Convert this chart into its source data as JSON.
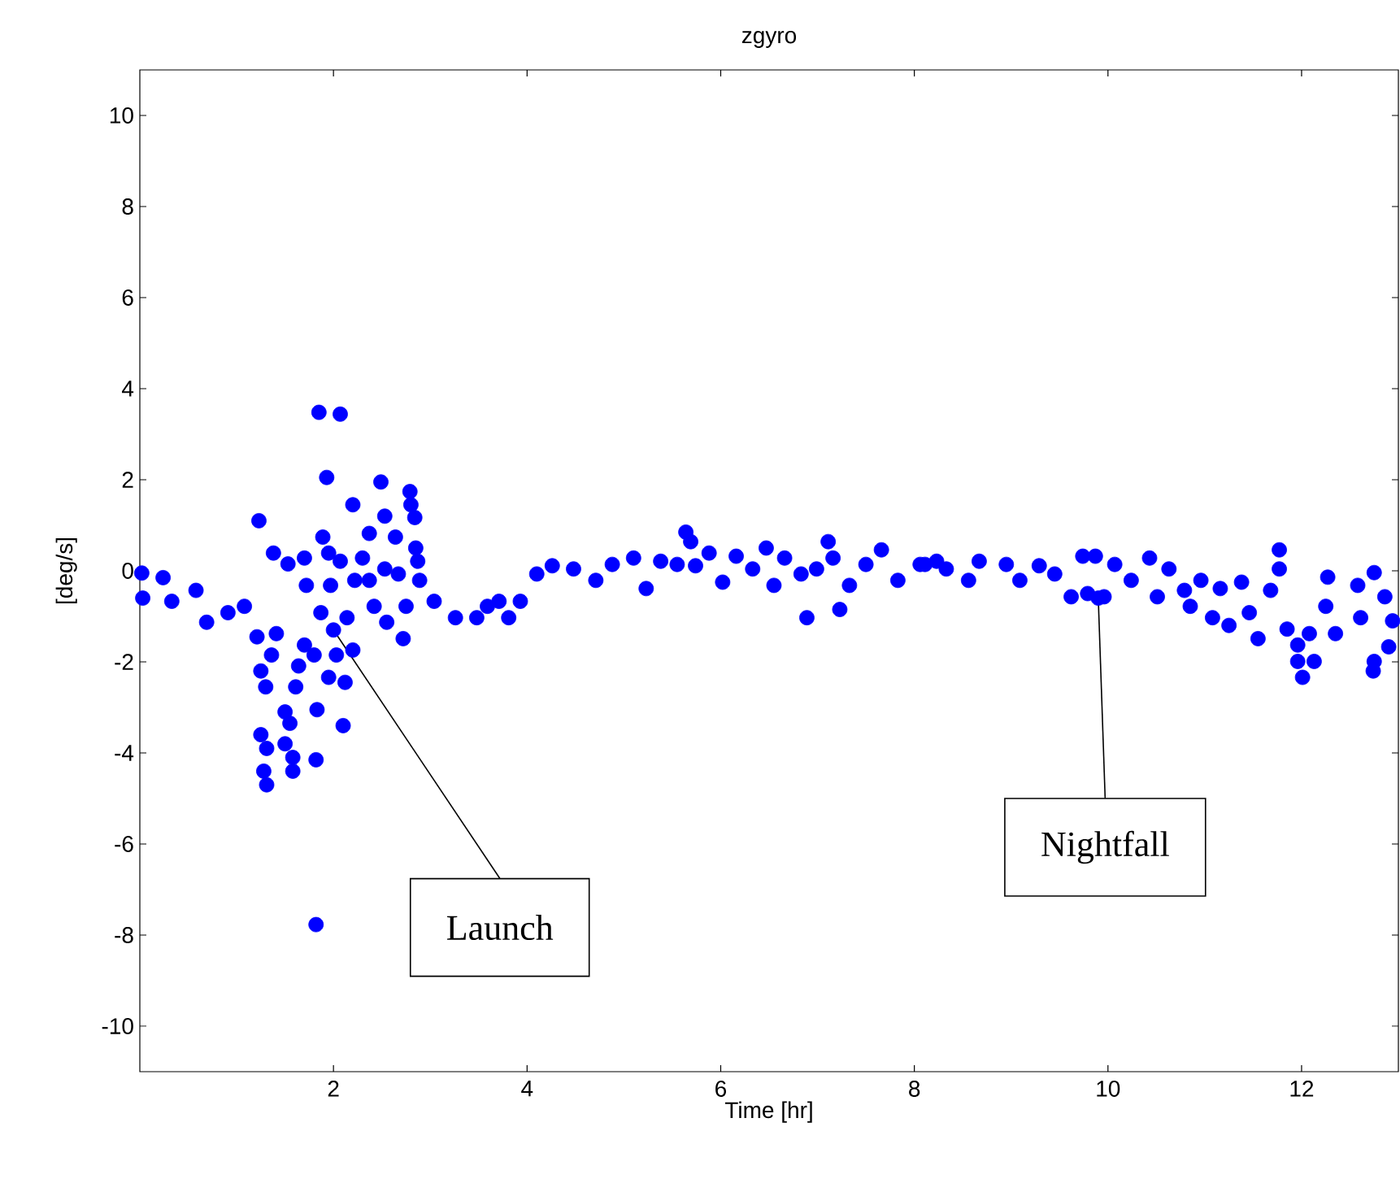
{
  "chart_data": {
    "type": "scatter",
    "title": "zgyro",
    "xlabel": "Time [hr]",
    "ylabel": "[deg/s]",
    "xlim": [
      0,
      13
    ],
    "ylim": [
      -11,
      11
    ],
    "xticks": [
      2,
      4,
      6,
      8,
      10,
      12
    ],
    "yticks": [
      -10,
      -8,
      -6,
      -4,
      -2,
      0,
      2,
      4,
      6,
      8,
      10
    ],
    "marker": "circle",
    "annotations": [
      {
        "text": "Launch",
        "x": 2,
        "y": -1.3
      },
      {
        "text": "Nightfall",
        "x": 9.9,
        "y": -0.6
      }
    ],
    "series": [
      {
        "color": "#0000ff",
        "x": [
          0.02,
          0.03,
          0.24,
          0.33,
          0.58,
          0.69,
          0.91,
          1.08,
          1.21,
          1.23,
          1.25,
          1.25,
          1.28,
          1.3,
          1.31,
          1.31,
          1.36,
          1.38,
          1.41,
          1.5,
          1.5,
          1.53,
          1.55,
          1.58,
          1.58,
          1.61,
          1.64,
          1.7,
          1.7,
          1.72,
          1.8,
          1.82,
          1.82,
          1.83,
          1.85,
          1.87,
          1.89,
          1.93,
          1.95,
          1.95,
          1.97,
          2,
          2.03,
          2.07,
          2.07,
          2.1,
          2.12,
          2.14,
          2.2,
          2.2,
          2.22,
          2.3,
          2.37,
          2.37,
          2.42,
          2.49,
          2.53,
          2.53,
          2.55,
          2.64,
          2.67,
          2.72,
          2.75,
          2.79,
          2.8,
          2.84,
          2.85,
          2.87,
          2.89,
          3.04,
          3.26,
          3.48,
          3.59,
          3.71,
          3.81,
          3.93,
          4.1,
          4.26,
          4.48,
          4.71,
          4.88,
          5.1,
          5.23,
          5.38,
          5.55,
          5.64,
          5.69,
          5.74,
          5.88,
          6.02,
          6.16,
          6.33,
          6.47,
          6.55,
          6.66,
          6.83,
          6.89,
          6.99,
          7.11,
          7.16,
          7.23,
          7.33,
          7.5,
          7.66,
          7.83,
          8.06,
          8.11,
          8.23,
          8.33,
          8.56,
          8.67,
          8.95,
          9.09,
          9.29,
          9.45,
          9.62,
          9.74,
          9.79,
          9.87,
          9.9,
          9.96,
          10.07,
          10.24,
          10.43,
          10.51,
          10.63,
          10.79,
          10.85,
          10.96,
          11.08,
          11.16,
          11.25,
          11.38,
          11.46,
          11.55,
          11.68,
          11.77,
          11.77,
          11.85,
          11.96,
          11.96,
          12.01,
          12.08,
          12.13,
          12.25,
          12.27,
          12.35,
          12.58,
          12.61,
          12.74,
          12.75,
          12.75,
          12.86,
          12.9,
          12.94
        ],
        "values": [
          -0.05,
          -0.6,
          -0.15,
          -0.67,
          -0.43,
          -1.13,
          -0.92,
          -0.78,
          -1.45,
          1.1,
          -2.2,
          -3.6,
          -4.4,
          -2.55,
          -3.9,
          -4.7,
          -1.85,
          0.39,
          -1.38,
          -3.1,
          -3.8,
          0.15,
          -3.35,
          -4.1,
          -4.4,
          -2.55,
          -2.09,
          0.28,
          -1.63,
          -0.32,
          -1.85,
          -4.15,
          -7.77,
          -3.05,
          3.48,
          -0.92,
          0.74,
          2.05,
          0.39,
          -2.34,
          -0.32,
          -1.3,
          -1.85,
          3.44,
          0.21,
          -3.4,
          -2.45,
          -1.03,
          1.45,
          -1.74,
          -0.21,
          0.28,
          0.82,
          -0.21,
          -0.78,
          1.95,
          1.2,
          0.04,
          -1.13,
          0.74,
          -0.07,
          -1.49,
          -0.78,
          1.74,
          1.45,
          1.17,
          0.5,
          0.21,
          -0.21,
          -0.67,
          -1.03,
          -1.03,
          -0.78,
          -0.67,
          -1.03,
          -0.67,
          -0.07,
          0.11,
          0.04,
          -0.21,
          0.14,
          0.28,
          -0.39,
          0.21,
          0.14,
          0.85,
          0.64,
          0.11,
          0.39,
          -0.25,
          0.32,
          0.04,
          0.5,
          -0.32,
          0.28,
          -0.07,
          -1.03,
          0.04,
          0.64,
          0.28,
          -0.85,
          -0.32,
          0.14,
          0.46,
          -0.21,
          0.14,
          0.14,
          0.21,
          0.04,
          -0.21,
          0.21,
          0.14,
          -0.21,
          0.11,
          -0.07,
          -0.57,
          0.32,
          -0.5,
          0.32,
          -0.6,
          -0.57,
          0.14,
          -0.21,
          0.28,
          -0.57,
          0.04,
          -0.43,
          -0.78,
          -0.21,
          -1.03,
          -0.39,
          -1.2,
          -0.25,
          -0.92,
          -1.49,
          -0.43,
          0.46,
          0.04,
          -1.28,
          -1.63,
          -1.99,
          -2.34,
          -1.38,
          -1.99,
          -0.78,
          -0.14,
          -1.38,
          -0.32,
          -1.03,
          -2.2,
          -0.04,
          -1.99,
          -0.57,
          -1.67,
          -1.1
        ]
      }
    ]
  }
}
